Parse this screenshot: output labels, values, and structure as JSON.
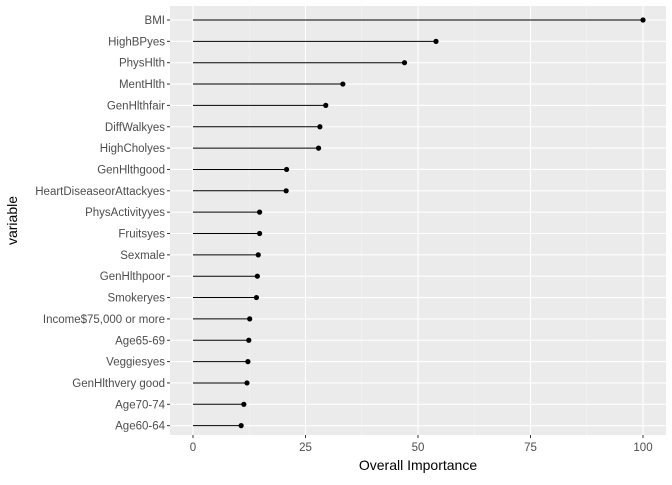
{
  "chart_data": {
    "type": "lollipop",
    "xlabel": "Overall Importance",
    "ylabel": "variable",
    "xlim": [
      0,
      100
    ],
    "xticks": [
      0,
      25,
      50,
      75,
      100
    ],
    "grid": true,
    "legend": "none",
    "colors": {
      "panel_background": "#EBEBEB",
      "grid_major": "#FFFFFF",
      "grid_minor": "#F5F5F5",
      "mark": "#000000",
      "tick_label": "#4D4D4D",
      "axis_title": "#000000"
    },
    "categories": [
      "BMI",
      "HighBPyes",
      "PhysHlth",
      "MentHlth",
      "GenHlthfair",
      "DiffWalkyes",
      "HighCholyes",
      "GenHlthgood",
      "HeartDiseaseorAttackyes",
      "PhysActivityyes",
      "Fruitsyes",
      "Sexmale",
      "GenHlthpoor",
      "Smokeryes",
      "Income$75,000 or more",
      "Age65-69",
      "Veggiesyes",
      "GenHlthvery good",
      "Age70-74",
      "Age60-64"
    ],
    "values": [
      100,
      54,
      47,
      33.3,
      29.5,
      28.2,
      27.9,
      20.8,
      20.7,
      14.8,
      14.8,
      14.5,
      14.3,
      14.1,
      12.6,
      12.4,
      12.2,
      12.0,
      11.3,
      10.7
    ]
  }
}
